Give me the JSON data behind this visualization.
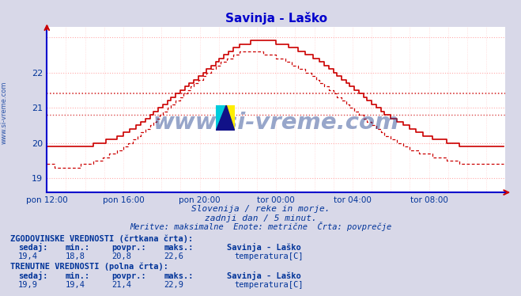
{
  "title": "Savinja - Laško",
  "title_color": "#0000cc",
  "bg_color": "#d8d8e8",
  "plot_bg_color": "#ffffff",
  "line_color": "#cc0000",
  "text_color": "#003399",
  "ylim_min": 18.6,
  "ylim_max": 23.3,
  "yticks": [
    19,
    20,
    21,
    22
  ],
  "hline1_y": 21.4,
  "hline2_y": 20.8,
  "watermark": "www.si-vreme.com",
  "subtitle1": "Slovenija / reke in morje.",
  "subtitle2": "zadnji dan / 5 minut.",
  "subtitle3": "Meritve: maksimalne  Enote: metrične  Črta: povprečje",
  "xtick_labels": [
    "pon 12:00",
    "pon 16:00",
    "pon 20:00",
    "tor 00:00",
    "tor 04:00",
    "tor 08:00"
  ],
  "xtick_positions": [
    0,
    48,
    96,
    144,
    192,
    240
  ],
  "legend_hist_label": "ZGODOVINSKE VREDNOSTI (črtkana črta):",
  "legend_curr_label": "TRENUTNE VREDNOSTI (polna črta):",
  "hist_sedaj": "19,4",
  "hist_min": "18,8",
  "hist_povpr": "20,8",
  "hist_maks": "22,6",
  "curr_sedaj": "19,9",
  "curr_min": "19,4",
  "curr_povpr": "21,4",
  "curr_maks": "22,9",
  "station_name": "Savinja - Laško",
  "measure": "temperatura[C]",
  "xlim_start": 0,
  "xlim_end": 288
}
